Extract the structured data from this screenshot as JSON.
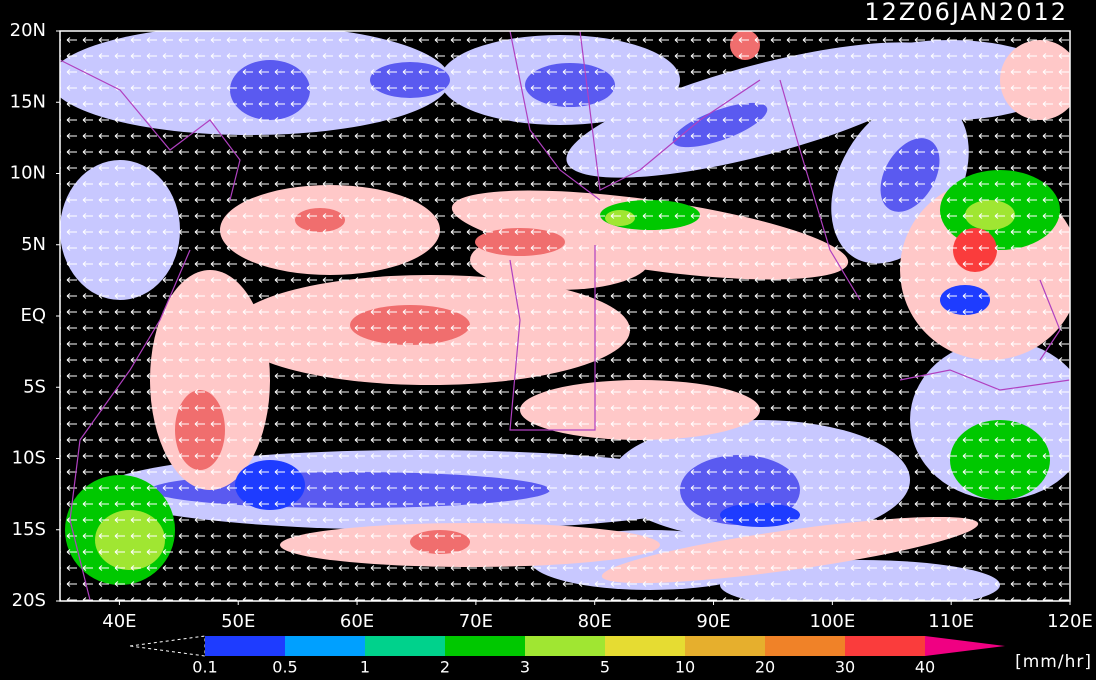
{
  "title": "12Z06JAN2012",
  "lat_labels": [
    "20N",
    "15N",
    "10N",
    "5N",
    "EQ",
    "5S",
    "10S",
    "15S",
    "20S"
  ],
  "lon_labels": [
    "40E",
    "50E",
    "60E",
    "70E",
    "80E",
    "90E",
    "100E",
    "110E",
    "120E"
  ],
  "colorbar": {
    "labels": [
      "0.1",
      "0.5",
      "1",
      "2",
      "3",
      "5",
      "10",
      "20",
      "30",
      "40"
    ],
    "colors": [
      "#1e3cff",
      "#00a0ff",
      "#00d28c",
      "#00c800",
      "#a0e632",
      "#e6dc32",
      "#e6af2d",
      "#f08228",
      "#fa3c3c"
    ],
    "over_color": "#f00082",
    "units": "[mm/hr]"
  }
}
